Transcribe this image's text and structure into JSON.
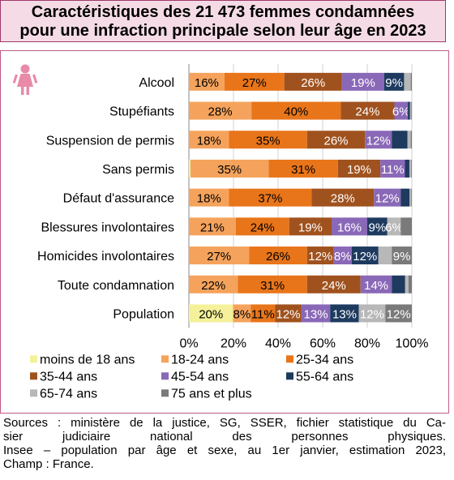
{
  "title_lines": [
    "Caractéristiques des 21 473 femmes condamnées",
    "pour une infraction principale selon leur âge en 2023"
  ],
  "icon": "female-person-icon",
  "colors": {
    "title_bg": "#f5dbe5",
    "frame": "#c05a88",
    "icon": "#e88aa8"
  },
  "chart_data": {
    "type": "bar",
    "orientation": "horizontal",
    "stacked": "percent",
    "categories": [
      "Alcool",
      "Stupéfiants",
      "Suspension de permis",
      "Sans permis",
      "Défaut d'assurance",
      "Blessures involontaires",
      "Homicides involontaires",
      "Toute condamnation",
      "Population"
    ],
    "series": [
      {
        "name": "moins de 18 ans",
        "color": "#f4f19a",
        "values": [
          0,
          0,
          0,
          0.7,
          0,
          0,
          0,
          0,
          20
        ]
      },
      {
        "name": "18-24 ans",
        "color": "#f5a35c",
        "values": [
          16,
          28,
          18,
          35,
          18,
          21,
          27,
          22,
          8
        ]
      },
      {
        "name": "25-34 ans",
        "color": "#e8751a",
        "values": [
          27,
          40,
          35,
          31,
          37,
          24,
          26,
          31,
          11
        ]
      },
      {
        "name": "35-44 ans",
        "color": "#a0521e",
        "values": [
          26,
          24,
          26,
          19,
          28,
          19,
          12,
          24,
          12
        ]
      },
      {
        "name": "45-54 ans",
        "color": "#8a68b8",
        "values": [
          19,
          6,
          12,
          11,
          12,
          16,
          8,
          14,
          13
        ]
      },
      {
        "name": "55-64 ans",
        "color": "#1e3a5f",
        "values": [
          9,
          1,
          7,
          2,
          4,
          9,
          12,
          6,
          13
        ]
      },
      {
        "name": "65-74 ans",
        "color": "#b8b8b8",
        "values": [
          3,
          0.5,
          1.5,
          0.8,
          0.7,
          6,
          6,
          1.5,
          12
        ]
      },
      {
        "name": "75 ans et plus",
        "color": "#7a7a7a",
        "values": [
          0.5,
          0.3,
          0.5,
          0.3,
          0.3,
          5,
          9,
          1.5,
          12
        ]
      }
    ],
    "labels": [
      [
        "",
        "16%",
        "27%",
        "26%",
        "19%",
        "9%",
        "",
        ""
      ],
      [
        "",
        "28%",
        "40%",
        "24%",
        "6%",
        "",
        "",
        ""
      ],
      [
        "",
        "18%",
        "35%",
        "26%",
        "12%",
        "",
        "",
        ""
      ],
      [
        "",
        "35%",
        "31%",
        "19%",
        "11%",
        "",
        "",
        ""
      ],
      [
        "",
        "18%",
        "37%",
        "28%",
        "12%",
        "",
        "",
        ""
      ],
      [
        "",
        "21%",
        "24%",
        "19%",
        "16%",
        "9%",
        "6%",
        ""
      ],
      [
        "",
        "27%",
        "26%",
        "12%",
        "8%",
        "12%",
        "",
        "9%"
      ],
      [
        "",
        "22%",
        "31%",
        "24%",
        "14%",
        "",
        "",
        ""
      ],
      [
        "20%",
        "8%",
        "11%",
        "12%",
        "13%",
        "13%",
        "12%",
        "12%"
      ]
    ],
    "x_ticks": [
      "0%",
      "20%",
      "40%",
      "60%",
      "80%",
      "100%"
    ],
    "xlim": [
      0,
      100
    ],
    "grid": true,
    "legend_position": "bottom"
  },
  "sources_lines": [
    "Sources : ministère de la justice, SG, SSER, fichier statistique du Ca-",
    "sier judiciaire national des personnes physiques.",
    "Insee – population par âge et sexe, au 1er janvier, estimation 2023,",
    "Champ : France."
  ]
}
